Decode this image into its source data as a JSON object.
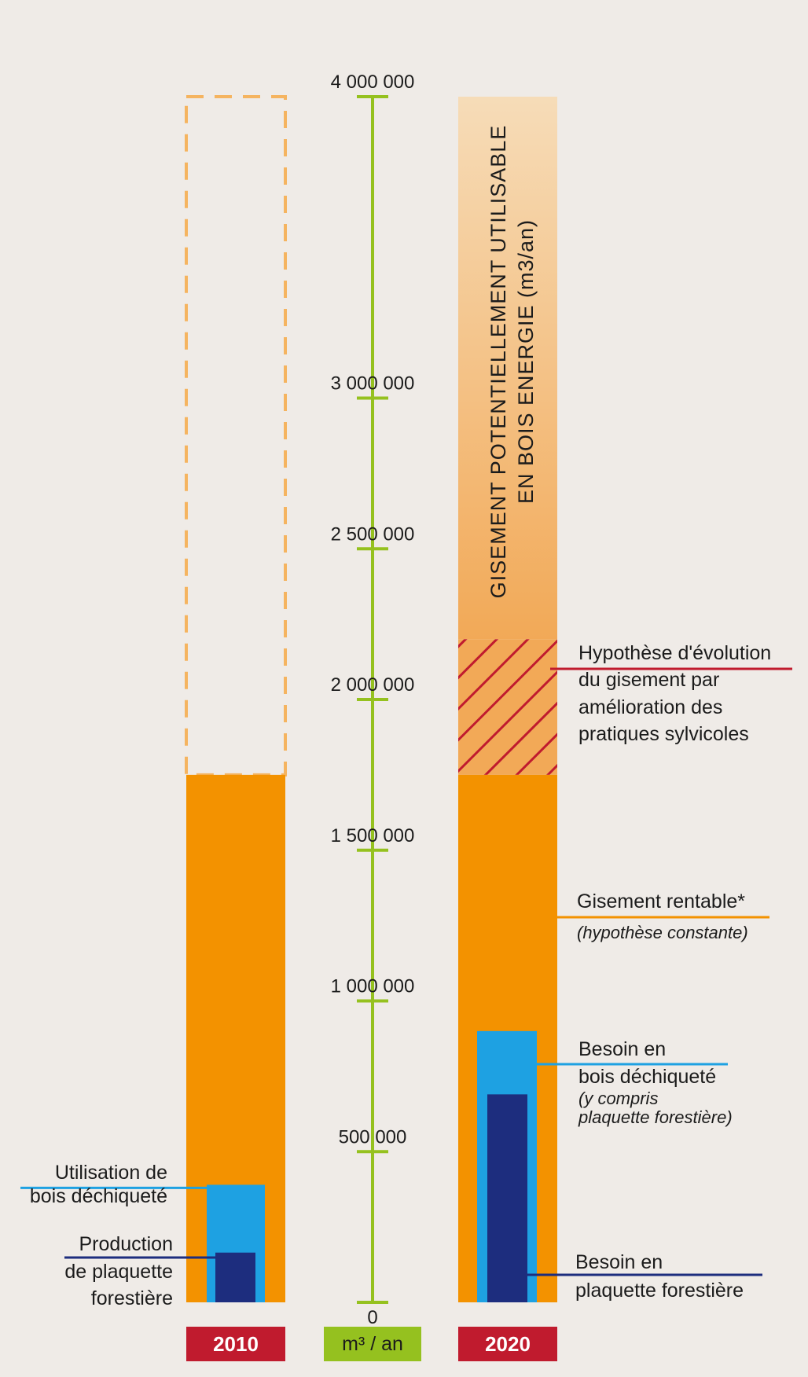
{
  "chart_data": {
    "type": "bar",
    "axis": {
      "unit": "m³ / an",
      "ylim": [
        0,
        4000000
      ],
      "tick_labels": [
        "0",
        "500 000",
        "1 000 000",
        "1 500 000",
        "2 000 000",
        "2 500 000",
        "3 000 000",
        "4 000 000"
      ]
    },
    "years": [
      "2010",
      "2020"
    ],
    "bars_2010": {
      "gisement_rentable": 1750000,
      "utilisation_bois_dechiquete": 390000,
      "production_plaquette_forestiere": 165000,
      "gisement_potentiel_outline_top": 4000000
    },
    "bars_2020": {
      "gisement_rentable": 1750000,
      "hypothese_evolution_top": 2200000,
      "gisement_potentiel_top": 4000000,
      "besoin_bois_dechiquete": 900000,
      "besoin_plaquette_forestiere": 690000
    },
    "vertical_title_line1": "GISEMENT POTENTIELLEMENT UTILISABLE",
    "vertical_title_line2": "EN BOIS ENERGIE (m3/an)",
    "labels": {
      "utilisation": [
        "Utilisation de",
        "bois déchiqueté"
      ],
      "production": [
        "Production",
        "de plaquette",
        "forestière"
      ],
      "hypothese": [
        "Hypothèse d'évolution",
        "du gisement par",
        "amélioration des",
        "pratiques sylvicoles"
      ],
      "rentable": "Gisement rentable*",
      "rentable_note": "(hypothèse constante)",
      "besoin_bois": [
        "Besoin en",
        "bois déchiqueté"
      ],
      "besoin_bois_note": [
        "(y compris",
        "plaquette forestière)"
      ],
      "besoin_plaquette": [
        "Besoin en",
        "plaquette forestière"
      ]
    },
    "colors": {
      "orange": "#f39200",
      "light_blue": "#1ea1e2",
      "dark_blue": "#1d2d7e",
      "red": "#c01b2e",
      "green": "#95c11f",
      "dashed": "#f5b460",
      "background": "#efebe7"
    }
  }
}
